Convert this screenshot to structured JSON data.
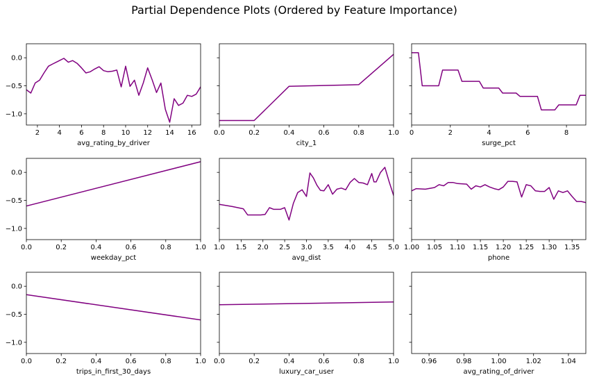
{
  "figure": {
    "title": "Partial Dependence Plots (Ordered by Feature Importance)",
    "line_color": "#800080"
  },
  "chart_data": [
    {
      "type": "line",
      "xlabel": "avg_rating_by_driver",
      "xlim": [
        1,
        16.8
      ],
      "ylim": [
        -1.2,
        0.25
      ],
      "xticks": [
        2,
        4,
        6,
        8,
        10,
        12,
        14,
        16
      ],
      "xtick_labels": [
        "2",
        "4",
        "6",
        "8",
        "10",
        "12",
        "14",
        "16"
      ],
      "yticks": [
        0.0,
        -0.5,
        -1.0
      ],
      "ytick_labels": [
        "0.0",
        "−0.5",
        "−1.0"
      ],
      "show_yticklabels": true,
      "x": [
        1,
        1.4,
        1.8,
        2.2,
        2.6,
        3,
        3.4,
        3.8,
        4,
        4.4,
        4.8,
        5.2,
        5.6,
        6,
        6.4,
        6.8,
        7.2,
        7.6,
        8,
        8.4,
        8.8,
        9.2,
        9.6,
        10,
        10.4,
        10.8,
        11.2,
        11.6,
        12,
        12.4,
        12.8,
        13.2,
        13.6,
        14,
        14.4,
        14.8,
        15.2,
        15.6,
        16,
        16.4,
        16.8
      ],
      "y": [
        -0.57,
        -0.63,
        -0.45,
        -0.4,
        -0.27,
        -0.15,
        -0.11,
        -0.07,
        -0.05,
        -0.01,
        -0.08,
        -0.05,
        -0.1,
        -0.18,
        -0.27,
        -0.25,
        -0.2,
        -0.16,
        -0.23,
        -0.25,
        -0.24,
        -0.22,
        -0.52,
        -0.15,
        -0.51,
        -0.4,
        -0.67,
        -0.45,
        -0.18,
        -0.39,
        -0.62,
        -0.45,
        -0.92,
        -1.15,
        -0.73,
        -0.85,
        -0.81,
        -0.67,
        -0.69,
        -0.65,
        -0.52
      ]
    },
    {
      "type": "line",
      "xlabel": "city_1",
      "xlim": [
        0,
        1
      ],
      "ylim": [
        -1.2,
        0.25
      ],
      "xticks": [
        0,
        0.2,
        0.4,
        0.6,
        0.8,
        1.0
      ],
      "xtick_labels": [
        "0.0",
        "0.2",
        "0.4",
        "0.6",
        "0.8",
        "1.0"
      ],
      "yticks": [
        0.0,
        -0.5,
        -1.0
      ],
      "ytick_labels": [
        "",
        "",
        ""
      ],
      "show_yticklabels": false,
      "x": [
        0,
        0.2,
        0.4,
        0.8,
        1.0
      ],
      "y": [
        -1.12,
        -1.12,
        -0.51,
        -0.48,
        0.06
      ]
    },
    {
      "type": "line",
      "xlabel": "surge_pct",
      "xlim": [
        0,
        9
      ],
      "ylim": [
        -1.2,
        0.25
      ],
      "xticks": [
        0,
        2,
        4,
        6,
        8
      ],
      "xtick_labels": [
        "0",
        "2",
        "4",
        "6",
        "8"
      ],
      "yticks": [
        0.0,
        -0.5,
        -1.0
      ],
      "ytick_labels": [
        "",
        "",
        ""
      ],
      "show_yticklabels": false,
      "x": [
        0,
        0.35,
        0.55,
        1.4,
        1.6,
        2.4,
        2.6,
        3.5,
        3.7,
        4.5,
        4.7,
        5.4,
        5.6,
        6.5,
        6.7,
        7.4,
        7.6,
        8.5,
        8.7,
        9.0
      ],
      "y": [
        0.09,
        0.09,
        -0.5,
        -0.5,
        -0.22,
        -0.22,
        -0.42,
        -0.42,
        -0.54,
        -0.54,
        -0.63,
        -0.63,
        -0.69,
        -0.69,
        -0.93,
        -0.93,
        -0.84,
        -0.84,
        -0.67,
        -0.67
      ]
    },
    {
      "type": "line",
      "xlabel": "weekday_pct",
      "xlim": [
        0,
        1
      ],
      "ylim": [
        -1.2,
        0.25
      ],
      "xticks": [
        0,
        0.2,
        0.4,
        0.6,
        0.8,
        1.0
      ],
      "xtick_labels": [
        "0.0",
        "0.2",
        "0.4",
        "0.6",
        "0.8",
        "1.0"
      ],
      "yticks": [
        0.0,
        -0.5,
        -1.0
      ],
      "ytick_labels": [
        "0.0",
        "−0.5",
        "−1.0"
      ],
      "show_yticklabels": true,
      "x": [
        0,
        1.0
      ],
      "y": [
        -0.6,
        0.19
      ]
    },
    {
      "type": "line",
      "xlabel": "avg_dist",
      "xlim": [
        1.0,
        5.0
      ],
      "ylim": [
        -1.2,
        0.25
      ],
      "xticks": [
        1.0,
        1.5,
        2.0,
        2.5,
        3.0,
        3.5,
        4.0,
        4.5,
        5.0
      ],
      "xtick_labels": [
        "1.0",
        "1.5",
        "2.0",
        "2.5",
        "3.0",
        "3.5",
        "4.0",
        "4.5",
        "5.0"
      ],
      "yticks": [
        0.0,
        -0.5,
        -1.0
      ],
      "ytick_labels": [
        "",
        "",
        ""
      ],
      "show_yticklabels": false,
      "x": [
        1.0,
        1.3,
        1.55,
        1.65,
        1.8,
        1.95,
        2.05,
        2.15,
        2.25,
        2.4,
        2.5,
        2.6,
        2.7,
        2.8,
        2.9,
        3.0,
        3.08,
        3.16,
        3.24,
        3.32,
        3.4,
        3.5,
        3.6,
        3.7,
        3.8,
        3.9,
        4.0,
        4.1,
        4.2,
        4.3,
        4.4,
        4.5,
        4.55,
        4.6,
        4.7,
        4.8,
        4.9,
        5.0
      ],
      "y": [
        -0.57,
        -0.61,
        -0.65,
        -0.76,
        -0.76,
        -0.76,
        -0.75,
        -0.63,
        -0.66,
        -0.66,
        -0.63,
        -0.85,
        -0.55,
        -0.36,
        -0.31,
        -0.43,
        -0.01,
        -0.1,
        -0.23,
        -0.32,
        -0.33,
        -0.22,
        -0.39,
        -0.3,
        -0.28,
        -0.31,
        -0.18,
        -0.11,
        -0.18,
        -0.19,
        -0.22,
        -0.02,
        -0.17,
        -0.17,
        0.0,
        0.09,
        -0.17,
        -0.41
      ]
    },
    {
      "type": "line",
      "xlabel": "phone",
      "xlim": [
        1.0,
        1.38
      ],
      "ylim": [
        -1.2,
        0.25
      ],
      "xticks": [
        1.0,
        1.05,
        1.1,
        1.15,
        1.2,
        1.25,
        1.3,
        1.35
      ],
      "xtick_labels": [
        "1.00",
        "1.05",
        "1.10",
        "1.15",
        "1.20",
        "1.25",
        "1.30",
        "1.35"
      ],
      "yticks": [
        0.0,
        -0.5,
        -1.0
      ],
      "ytick_labels": [
        "",
        "",
        ""
      ],
      "show_yticklabels": false,
      "x": [
        1.0,
        1.01,
        1.03,
        1.05,
        1.06,
        1.07,
        1.08,
        1.09,
        1.1,
        1.12,
        1.13,
        1.14,
        1.15,
        1.16,
        1.17,
        1.18,
        1.19,
        1.2,
        1.21,
        1.22,
        1.23,
        1.24,
        1.25,
        1.26,
        1.27,
        1.28,
        1.29,
        1.3,
        1.31,
        1.32,
        1.33,
        1.34,
        1.35,
        1.36,
        1.37,
        1.38
      ],
      "y": [
        -0.33,
        -0.29,
        -0.3,
        -0.27,
        -0.22,
        -0.24,
        -0.18,
        -0.18,
        -0.2,
        -0.21,
        -0.3,
        -0.24,
        -0.26,
        -0.22,
        -0.26,
        -0.29,
        -0.31,
        -0.26,
        -0.16,
        -0.16,
        -0.17,
        -0.44,
        -0.22,
        -0.24,
        -0.33,
        -0.34,
        -0.34,
        -0.27,
        -0.48,
        -0.33,
        -0.36,
        -0.33,
        -0.43,
        -0.52,
        -0.52,
        -0.54
      ]
    },
    {
      "type": "line",
      "xlabel": "trips_in_first_30_days",
      "xlim": [
        0,
        1
      ],
      "ylim": [
        -1.2,
        0.25
      ],
      "xticks": [
        0,
        0.2,
        0.4,
        0.6,
        0.8,
        1.0
      ],
      "xtick_labels": [
        "0.0",
        "0.2",
        "0.4",
        "0.6",
        "0.8",
        "1.0"
      ],
      "yticks": [
        0.0,
        -0.5,
        -1.0
      ],
      "ytick_labels": [
        "0.0",
        "−0.5",
        "−1.0"
      ],
      "show_yticklabels": true,
      "x": [
        0,
        1.0
      ],
      "y": [
        -0.15,
        -0.6
      ]
    },
    {
      "type": "line",
      "xlabel": "luxury_car_user",
      "xlim": [
        0,
        1
      ],
      "ylim": [
        -1.2,
        0.25
      ],
      "xticks": [
        0,
        0.2,
        0.4,
        0.6,
        0.8,
        1.0
      ],
      "xtick_labels": [
        "0.0",
        "0.2",
        "0.4",
        "0.6",
        "0.8",
        "1.0"
      ],
      "yticks": [
        0.0,
        -0.5,
        -1.0
      ],
      "ytick_labels": [
        "",
        "",
        ""
      ],
      "show_yticklabels": false,
      "x": [
        0,
        1.0
      ],
      "y": [
        -0.33,
        -0.28
      ]
    },
    {
      "type": "line",
      "xlabel": "avg_rating_of_driver",
      "xlim": [
        0.95,
        1.05
      ],
      "ylim": [
        -1.2,
        0.25
      ],
      "xticks": [
        0.96,
        0.98,
        1.0,
        1.02,
        1.04
      ],
      "xtick_labels": [
        "0.96",
        "0.98",
        "1.00",
        "1.02",
        "1.04"
      ],
      "yticks": [
        0.0,
        -0.5,
        -1.0
      ],
      "ytick_labels": [
        "",
        "",
        ""
      ],
      "show_yticklabels": false,
      "x": [],
      "y": []
    }
  ]
}
